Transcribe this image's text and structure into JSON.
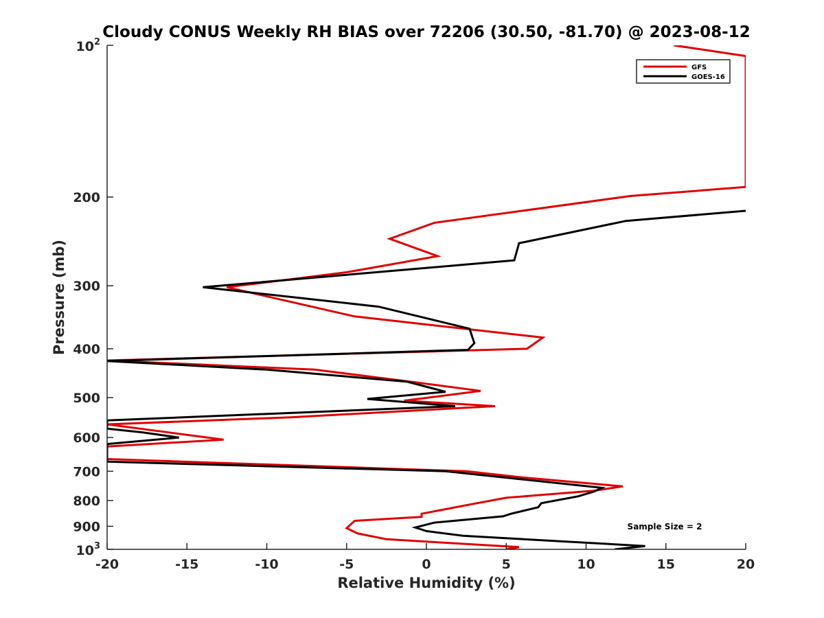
{
  "chart_data": {
    "type": "line",
    "title": "Cloudy CONUS Weekly RH BIAS over 72206 (30.50, -81.70) @ 2023-08-12",
    "xlabel": "Relative Humidity (%)",
    "ylabel": "Pressure (mb)",
    "xlim": [
      -20,
      20
    ],
    "ylim": [
      100,
      1000
    ],
    "yscale": "log",
    "y_reversed": true,
    "grid": false,
    "legend_position": "top-right",
    "xticks": [
      -20,
      -15,
      -10,
      -5,
      0,
      5,
      10,
      15,
      20
    ],
    "xtick_labels": [
      "-20",
      "-15",
      "-10",
      "-5",
      "0",
      "5",
      "10",
      "15",
      "20"
    ],
    "yticks": [
      {
        "value": 100,
        "base": "10",
        "exp": "2"
      },
      {
        "value": 200,
        "label": "200"
      },
      {
        "value": 300,
        "label": "300"
      },
      {
        "value": 400,
        "label": "400"
      },
      {
        "value": 500,
        "label": "500"
      },
      {
        "value": 600,
        "label": "600"
      },
      {
        "value": 700,
        "label": "700"
      },
      {
        "value": 800,
        "label": "800"
      },
      {
        "value": 900,
        "label": "900"
      },
      {
        "value": 1000,
        "base": "10",
        "exp": "3"
      }
    ],
    "annotation": "Sample Size = 2",
    "series": [
      {
        "name": "GFS",
        "color": "#e00000",
        "points": [
          [
            15.5,
            100
          ],
          [
            20.0,
            105
          ],
          [
            20.0,
            191
          ],
          [
            12.8,
            199
          ],
          [
            0.5,
            225
          ],
          [
            -2.3,
            242
          ],
          [
            0.7,
            262
          ],
          [
            -5.0,
            282
          ],
          [
            -12.5,
            302
          ],
          [
            -4.5,
            345
          ],
          [
            7.3,
            380
          ],
          [
            6.3,
            400
          ],
          [
            -20.0,
            422
          ],
          [
            -7.0,
            440
          ],
          [
            -1.0,
            465
          ],
          [
            3.4,
            485
          ],
          [
            -1.4,
            507
          ],
          [
            4.3,
            520
          ],
          [
            -8.5,
            547
          ],
          [
            -20.0,
            565
          ],
          [
            -16.0,
            587
          ],
          [
            -12.7,
            606
          ],
          [
            -20.0,
            625
          ],
          [
            -20.0,
            662
          ],
          [
            2.5,
            700
          ],
          [
            6.0,
            720
          ],
          [
            12.3,
            750
          ],
          [
            10.5,
            765
          ],
          [
            5.0,
            790
          ],
          [
            2.7,
            815
          ],
          [
            -0.3,
            850
          ],
          [
            -0.3,
            862
          ],
          [
            -4.5,
            878
          ],
          [
            -5.0,
            908
          ],
          [
            -4.3,
            930
          ],
          [
            -2.5,
            955
          ],
          [
            5.8,
            990
          ],
          [
            5.0,
            1000
          ]
        ]
      },
      {
        "name": "GOES-16",
        "color": "#000000",
        "points": [
          [
            20.0,
            213
          ],
          [
            12.5,
            223
          ],
          [
            5.8,
            247
          ],
          [
            5.5,
            267
          ],
          [
            -14.0,
            302
          ],
          [
            -3.0,
            330
          ],
          [
            2.7,
            365
          ],
          [
            3.0,
            390
          ],
          [
            2.6,
            402
          ],
          [
            -20.0,
            423
          ],
          [
            -10.0,
            440
          ],
          [
            -1.2,
            465
          ],
          [
            1.2,
            487
          ],
          [
            -3.7,
            503
          ],
          [
            1.8,
            520
          ],
          [
            -20.0,
            555
          ],
          [
            -20.0,
            576
          ],
          [
            -17.8,
            586
          ],
          [
            -15.5,
            600
          ],
          [
            -20.0,
            618
          ],
          [
            -20.0,
            670
          ],
          [
            1.2,
            700
          ],
          [
            11.0,
            755
          ],
          [
            10.5,
            768
          ],
          [
            9.5,
            785
          ],
          [
            7.2,
            810
          ],
          [
            7.0,
            825
          ],
          [
            5.3,
            850
          ],
          [
            4.8,
            860
          ],
          [
            0.5,
            885
          ],
          [
            -0.7,
            905
          ],
          [
            0,
            920
          ],
          [
            2.3,
            940
          ],
          [
            13.7,
            985
          ],
          [
            11.8,
            1000
          ]
        ]
      }
    ]
  }
}
